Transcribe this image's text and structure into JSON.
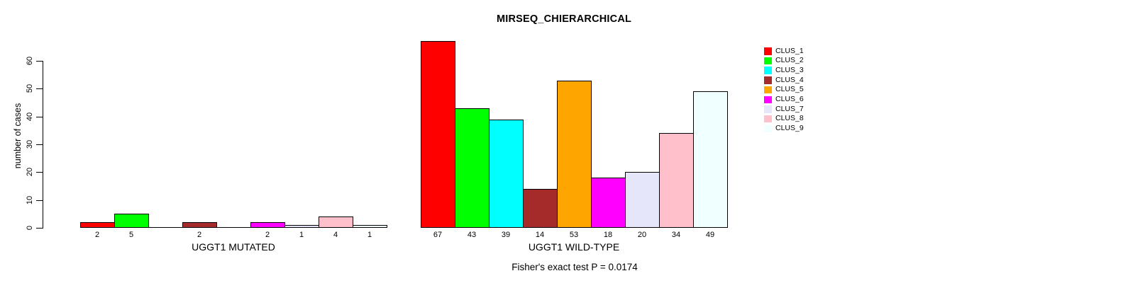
{
  "chart_data": {
    "type": "bar",
    "title": "MIRSEQ_CHIERARCHICAL",
    "ylabel": "number of cases",
    "xlabel": "",
    "ylim": [
      0,
      60
    ],
    "yticks": [
      0,
      10,
      20,
      30,
      40,
      50,
      60
    ],
    "grid": false,
    "legend_position": "right",
    "categories": [
      "UGGT1 MUTATED",
      "UGGT1 WILD-TYPE"
    ],
    "series": [
      {
        "name": "CLUS_1",
        "color": "#FF0000",
        "values": [
          2,
          67
        ]
      },
      {
        "name": "CLUS_2",
        "color": "#00FF00",
        "values": [
          5,
          43
        ]
      },
      {
        "name": "CLUS_3",
        "color": "#00FFFF",
        "values": [
          0,
          39
        ]
      },
      {
        "name": "CLUS_4",
        "color": "#A52A2A",
        "values": [
          2,
          14
        ]
      },
      {
        "name": "CLUS_5",
        "color": "#FFA500",
        "values": [
          0,
          53
        ]
      },
      {
        "name": "CLUS_6",
        "color": "#FF00FF",
        "values": [
          2,
          18
        ]
      },
      {
        "name": "CLUS_7",
        "color": "#E6E6FA",
        "values": [
          1,
          20
        ]
      },
      {
        "name": "CLUS_8",
        "color": "#FFC0CB",
        "values": [
          4,
          34
        ]
      },
      {
        "name": "CLUS_9",
        "color": "#F0FFFF",
        "values": [
          1,
          49
        ]
      }
    ],
    "bar_value_labels": true,
    "annotation": "Fisher's exact test P = 0.0174"
  }
}
